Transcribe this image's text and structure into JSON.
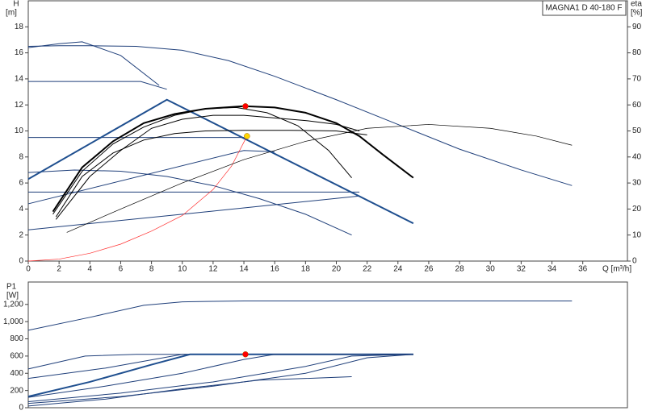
{
  "chart_data": [
    {
      "type": "line",
      "title": "MAGNA1 D 40-180 F",
      "y_label": "H",
      "y_unit": "[m]",
      "y2_label": "eta",
      "y2_unit": "[%]",
      "x_label": "Q [m³/h]",
      "xlim": [
        0,
        38.9
      ],
      "xticks": [
        0,
        2,
        4,
        6,
        8,
        10,
        12,
        14,
        16,
        18,
        20,
        22,
        24,
        26,
        28,
        30,
        32,
        34,
        36
      ],
      "ylim": [
        0,
        20
      ],
      "yticks": [
        0,
        2,
        4,
        6,
        8,
        10,
        12,
        14,
        16,
        18
      ],
      "y2lim": [
        0,
        100
      ],
      "y2ticks": [
        0,
        10,
        20,
        30,
        40,
        50,
        60,
        70,
        80,
        90
      ],
      "series": [
        {
          "color": "#1f3f7a",
          "linewidth": 1,
          "x": [
            0,
            2,
            4,
            7,
            10,
            13,
            16,
            20,
            24,
            28,
            32,
            35.3
          ],
          "values": [
            16.5,
            16.55,
            16.55,
            16.5,
            16.2,
            15.4,
            14.2,
            12.4,
            10.5,
            8.6,
            7,
            5.8
          ]
        },
        {
          "color": "#1f3f7a",
          "linewidth": 1,
          "x": [
            0,
            2,
            3.5,
            6,
            8.5
          ],
          "values": [
            16.4,
            16.7,
            16.85,
            15.8,
            13.5
          ]
        },
        {
          "color": "#1f3f7a",
          "linewidth": 1,
          "x": [
            0,
            7.3,
            9
          ],
          "values": [
            13.8,
            13.8,
            13.2
          ]
        },
        {
          "color": "#1f3f7a",
          "linewidth": 1,
          "x": [
            0,
            14
          ],
          "values": [
            9.5,
            9.5
          ]
        },
        {
          "color": "#1f3f7a",
          "linewidth": 1,
          "x": [
            0,
            21.5
          ],
          "values": [
            5.3,
            5.3
          ]
        },
        {
          "color": "#1f3f7a",
          "linewidth": 1,
          "x": [
            0,
            14,
            16
          ],
          "values": [
            4.4,
            8.5,
            8.4
          ]
        },
        {
          "color": "#1f3f7a",
          "linewidth": 1,
          "x": [
            0,
            10,
            21.5
          ],
          "values": [
            2.4,
            3.6,
            5.0
          ]
        },
        {
          "color": "#1f3f7a",
          "linewidth": 1,
          "x": [
            0,
            3,
            6,
            9,
            12,
            15,
            18,
            21
          ],
          "values": [
            6.8,
            7,
            6.9,
            6.5,
            5.8,
            4.8,
            3.6,
            2.0
          ]
        },
        {
          "color": "#1f4f8f",
          "linewidth": 2,
          "x": [
            0,
            9,
            25
          ],
          "values": [
            6.3,
            12.4,
            2.9
          ]
        },
        {
          "color": "#ff3030",
          "linewidth": 0.7,
          "x": [
            0,
            2,
            4,
            6,
            8,
            10,
            12,
            13.2,
            14.2
          ],
          "values": [
            0,
            0.15,
            0.6,
            1.3,
            2.3,
            3.5,
            5.5,
            7.3,
            9.6
          ]
        },
        {
          "color": "#000000",
          "linewidth": 0.7,
          "axis": "y2",
          "x": [
            2.5,
            6,
            10,
            14,
            18,
            22,
            26,
            30,
            33,
            35.3
          ],
          "values": [
            11,
            20,
            30,
            39,
            46,
            51,
            52.5,
            51,
            48,
            44.5
          ]
        },
        {
          "color": "#000000",
          "linewidth": 1,
          "x": [
            1.8,
            3.5,
            5.5,
            7.5,
            9.5,
            11.5,
            14,
            17,
            20,
            22
          ],
          "values": [
            3.4,
            6.5,
            8.3,
            9.3,
            9.8,
            10,
            10.05,
            10.05,
            10,
            9.7
          ]
        },
        {
          "color": "#000000",
          "linewidth": 1,
          "x": [
            1.8,
            4,
            6,
            8,
            10,
            12,
            14,
            16,
            18,
            20,
            21.5
          ],
          "values": [
            3.2,
            6.5,
            8.5,
            10.2,
            10.9,
            11.2,
            11.2,
            11,
            10.8,
            10.5,
            10
          ]
        },
        {
          "color": "#000000",
          "linewidth": 1,
          "x": [
            1.6,
            3.5,
            5.5,
            7.5,
            9.5,
            11.5,
            13.5,
            15.5,
            17.5,
            19.5,
            21
          ],
          "values": [
            3.6,
            6.9,
            9,
            10.3,
            11.2,
            11.7,
            11.8,
            11.4,
            10.4,
            8.5,
            6.4
          ]
        },
        {
          "color": "#000000",
          "linewidth": 2,
          "x": [
            1.6,
            3.5,
            5.5,
            7.5,
            9.5,
            11.5,
            14,
            16,
            18,
            20,
            21.5,
            23,
            25
          ],
          "values": [
            3.8,
            7.2,
            9.2,
            10.6,
            11.3,
            11.7,
            11.9,
            11.8,
            11.4,
            10.6,
            9.6,
            8.2,
            6.4
          ]
        }
      ],
      "points": [
        {
          "color": "#ff0000",
          "x": 14.1,
          "y": 11.9
        },
        {
          "color": "#ffd700",
          "x": 14.2,
          "y": 9.6
        }
      ]
    },
    {
      "type": "line",
      "y_label": "P1",
      "y_unit": "[W]",
      "xlim": [
        0,
        38.9
      ],
      "ylim": [
        0,
        1460
      ],
      "yticks": [
        0,
        200,
        400,
        600,
        800,
        {
          "value": 1000,
          "label": "1,000"
        },
        {
          "value": 1200,
          "label": "1,200"
        }
      ],
      "series": [
        {
          "color": "#1f3f7a",
          "linewidth": 1,
          "x": [
            0,
            4,
            7.5,
            10,
            14,
            20,
            28,
            35.3
          ],
          "values": [
            900,
            1050,
            1190,
            1230,
            1240,
            1240,
            1240,
            1240
          ]
        },
        {
          "color": "#1f3f7a",
          "linewidth": 1,
          "x": [
            0,
            3.7,
            7,
            25
          ],
          "values": [
            450,
            600,
            620,
            620
          ]
        },
        {
          "color": "#1f3f7a",
          "linewidth": 1,
          "x": [
            0,
            5,
            10,
            25
          ],
          "values": [
            340,
            460,
            620,
            620
          ]
        },
        {
          "color": "#1f4f8f",
          "linewidth": 2,
          "x": [
            0,
            4,
            8,
            10.5,
            25
          ],
          "values": [
            130,
            300,
            500,
            620,
            620
          ]
        },
        {
          "color": "#1f3f7a",
          "linewidth": 1,
          "x": [
            0,
            5,
            10,
            14,
            16,
            25
          ],
          "values": [
            120,
            250,
            400,
            560,
            620,
            620
          ]
        },
        {
          "color": "#1f3f7a",
          "linewidth": 1,
          "x": [
            0,
            6,
            12,
            18,
            21,
            25
          ],
          "values": [
            70,
            170,
            300,
            480,
            600,
            620
          ]
        },
        {
          "color": "#1f3f7a",
          "linewidth": 1,
          "x": [
            0,
            6,
            12,
            18,
            22,
            25
          ],
          "values": [
            50,
            130,
            250,
            400,
            580,
            620
          ]
        },
        {
          "color": "#1f3f7a",
          "linewidth": 1,
          "x": [
            0,
            5,
            10,
            15,
            21
          ],
          "values": [
            20,
            100,
            220,
            320,
            360
          ]
        }
      ],
      "points": [
        {
          "color": "#ff0000",
          "x": 14.1,
          "y": 620
        }
      ]
    }
  ]
}
